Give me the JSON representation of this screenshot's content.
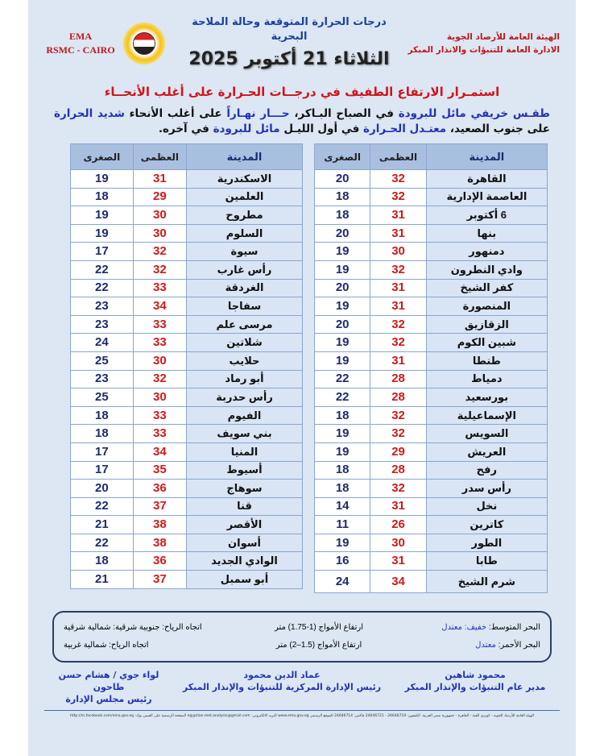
{
  "header": {
    "ema_line1": "EMA",
    "ema_line2": "RSMC - CAIRO",
    "org_line1": "الهيئة العامة للأرصاد الجوية",
    "org_line2": "الادارة العامة للتنبؤات والانذار المبكر",
    "title": "درجات الحرارة المتوقعة وحالة الملاحة البحرية",
    "date": "الثلاثاء 21 أكتوبر 2025",
    "logo_text": "EMA"
  },
  "headline": "استمـرار الارتفاع الطفيف في درجــات الحـرارة على أغلب الأنحــاء",
  "description": {
    "p1": "طقـس",
    "p2": " خريفي مائل للبرودة ",
    "p3": "في الصباح البـاكر، ",
    "p4": "حـــار نهـاراً ",
    "p5": "على أغلب الأنحاء ",
    "p6": "شديد الحرارة ",
    "p7": "على جنوب الصعيد، ",
    "p8": "معتـدل الحـرارة ",
    "p9": "في أول الليـل ",
    "p10": "مائل للبرودة ",
    "p11": "في آخره."
  },
  "table_headers": {
    "city": "المدينة",
    "max": "العظمى",
    "min": "الصغرى"
  },
  "right_table": [
    [
      "القاهرة",
      "32",
      "20"
    ],
    [
      "العاصمة الإدارية",
      "32",
      "18"
    ],
    [
      "6 أكتوبر",
      "31",
      "18"
    ],
    [
      "بنها",
      "31",
      "20"
    ],
    [
      "دمنهور",
      "30",
      "19"
    ],
    [
      "وادي النطرون",
      "32",
      "19"
    ],
    [
      "كفر الشيخ",
      "31",
      "20"
    ],
    [
      "المنصورة",
      "31",
      "19"
    ],
    [
      "الزقازيق",
      "32",
      "20"
    ],
    [
      "شبين الكوم",
      "32",
      "19"
    ],
    [
      "طنطا",
      "31",
      "19"
    ],
    [
      "دمياط",
      "28",
      "22"
    ],
    [
      "بورسعيد",
      "28",
      "22"
    ],
    [
      "الإسماعيلية",
      "32",
      "18"
    ],
    [
      "السويس",
      "32",
      "19"
    ],
    [
      "العريش",
      "29",
      "19"
    ],
    [
      "رفح",
      "28",
      "18"
    ],
    [
      "رأس سدر",
      "32",
      "18"
    ],
    [
      "نخل",
      "31",
      "14"
    ],
    [
      "كاترين",
      "26",
      "11"
    ],
    [
      "الطور",
      "30",
      "19"
    ],
    [
      "طابا",
      "31",
      "16"
    ],
    [
      "شرم الشيخ",
      "34",
      "24"
    ]
  ],
  "left_table": [
    [
      "الاسكندرية",
      "31",
      "19"
    ],
    [
      "العلمين",
      "29",
      "18"
    ],
    [
      "مطروح",
      "30",
      "19"
    ],
    [
      "السلوم",
      "30",
      "19"
    ],
    [
      "سيوة",
      "32",
      "17"
    ],
    [
      "رأس غارب",
      "32",
      "22"
    ],
    [
      "الغردقة",
      "33",
      "22"
    ],
    [
      "سفاجا",
      "34",
      "23"
    ],
    [
      "مرسى علم",
      "33",
      "23"
    ],
    [
      "شلاتين",
      "33",
      "24"
    ],
    [
      "حلايب",
      "30",
      "25"
    ],
    [
      "أبو رماد",
      "32",
      "23"
    ],
    [
      "رأس حدربة",
      "30",
      "25"
    ],
    [
      "الفيوم",
      "33",
      "18"
    ],
    [
      "بني سويف",
      "33",
      "18"
    ],
    [
      "المنيا",
      "34",
      "17"
    ],
    [
      "أسيوط",
      "35",
      "17"
    ],
    [
      "سوهاج",
      "36",
      "20"
    ],
    [
      "قنا",
      "37",
      "22"
    ],
    [
      "الأقصر",
      "38",
      "21"
    ],
    [
      "أسوان",
      "38",
      "22"
    ],
    [
      "الوادي الجديد",
      "36",
      "18"
    ],
    [
      "أبو سمبل",
      "37",
      "21"
    ]
  ],
  "sea": {
    "med_label": "البحر المتوسط: ",
    "med_state": "خفيف: معتدل",
    "med_waves": "ارتفاع الأمواج (1-1.75) متر",
    "med_wind": "اتجاه الرياح: جنوبية شرقية: شمالية شرقية",
    "red_label": "البحر الأحمر: ",
    "red_state": "معتدل",
    "red_waves": "ارتفاع الأمواج (1.5–2) متر",
    "red_wind": "اتجاه الرياح: شمالية غربية"
  },
  "signatures": [
    {
      "name": "محمود شاهين",
      "title": "مدير عام التنبؤات والإنذار المبكر"
    },
    {
      "name": "عماد الدين محمود",
      "title": "رئيس الإدارة المركزية للتنبؤات والإنذار المبكر"
    },
    {
      "name": "لواء جوي / هشام حسن طاحون",
      "title": "رئيس مجلس الإدارة"
    }
  ],
  "footer": "الهيئة العامة للأرصاد الجوية - كوبري القبة - القاهرة - جمهورية مصر العربية. التليفون: 24646719 - 24646721 فاكس: 24646714 الموقع الرسمي www.ema.gov.eg البريد الالكتروني: egyptian.met.analysis@gmail.com الصفحة الرسمية على الفيس بوك: http://m.facebook.com/ema.gov.eg"
}
